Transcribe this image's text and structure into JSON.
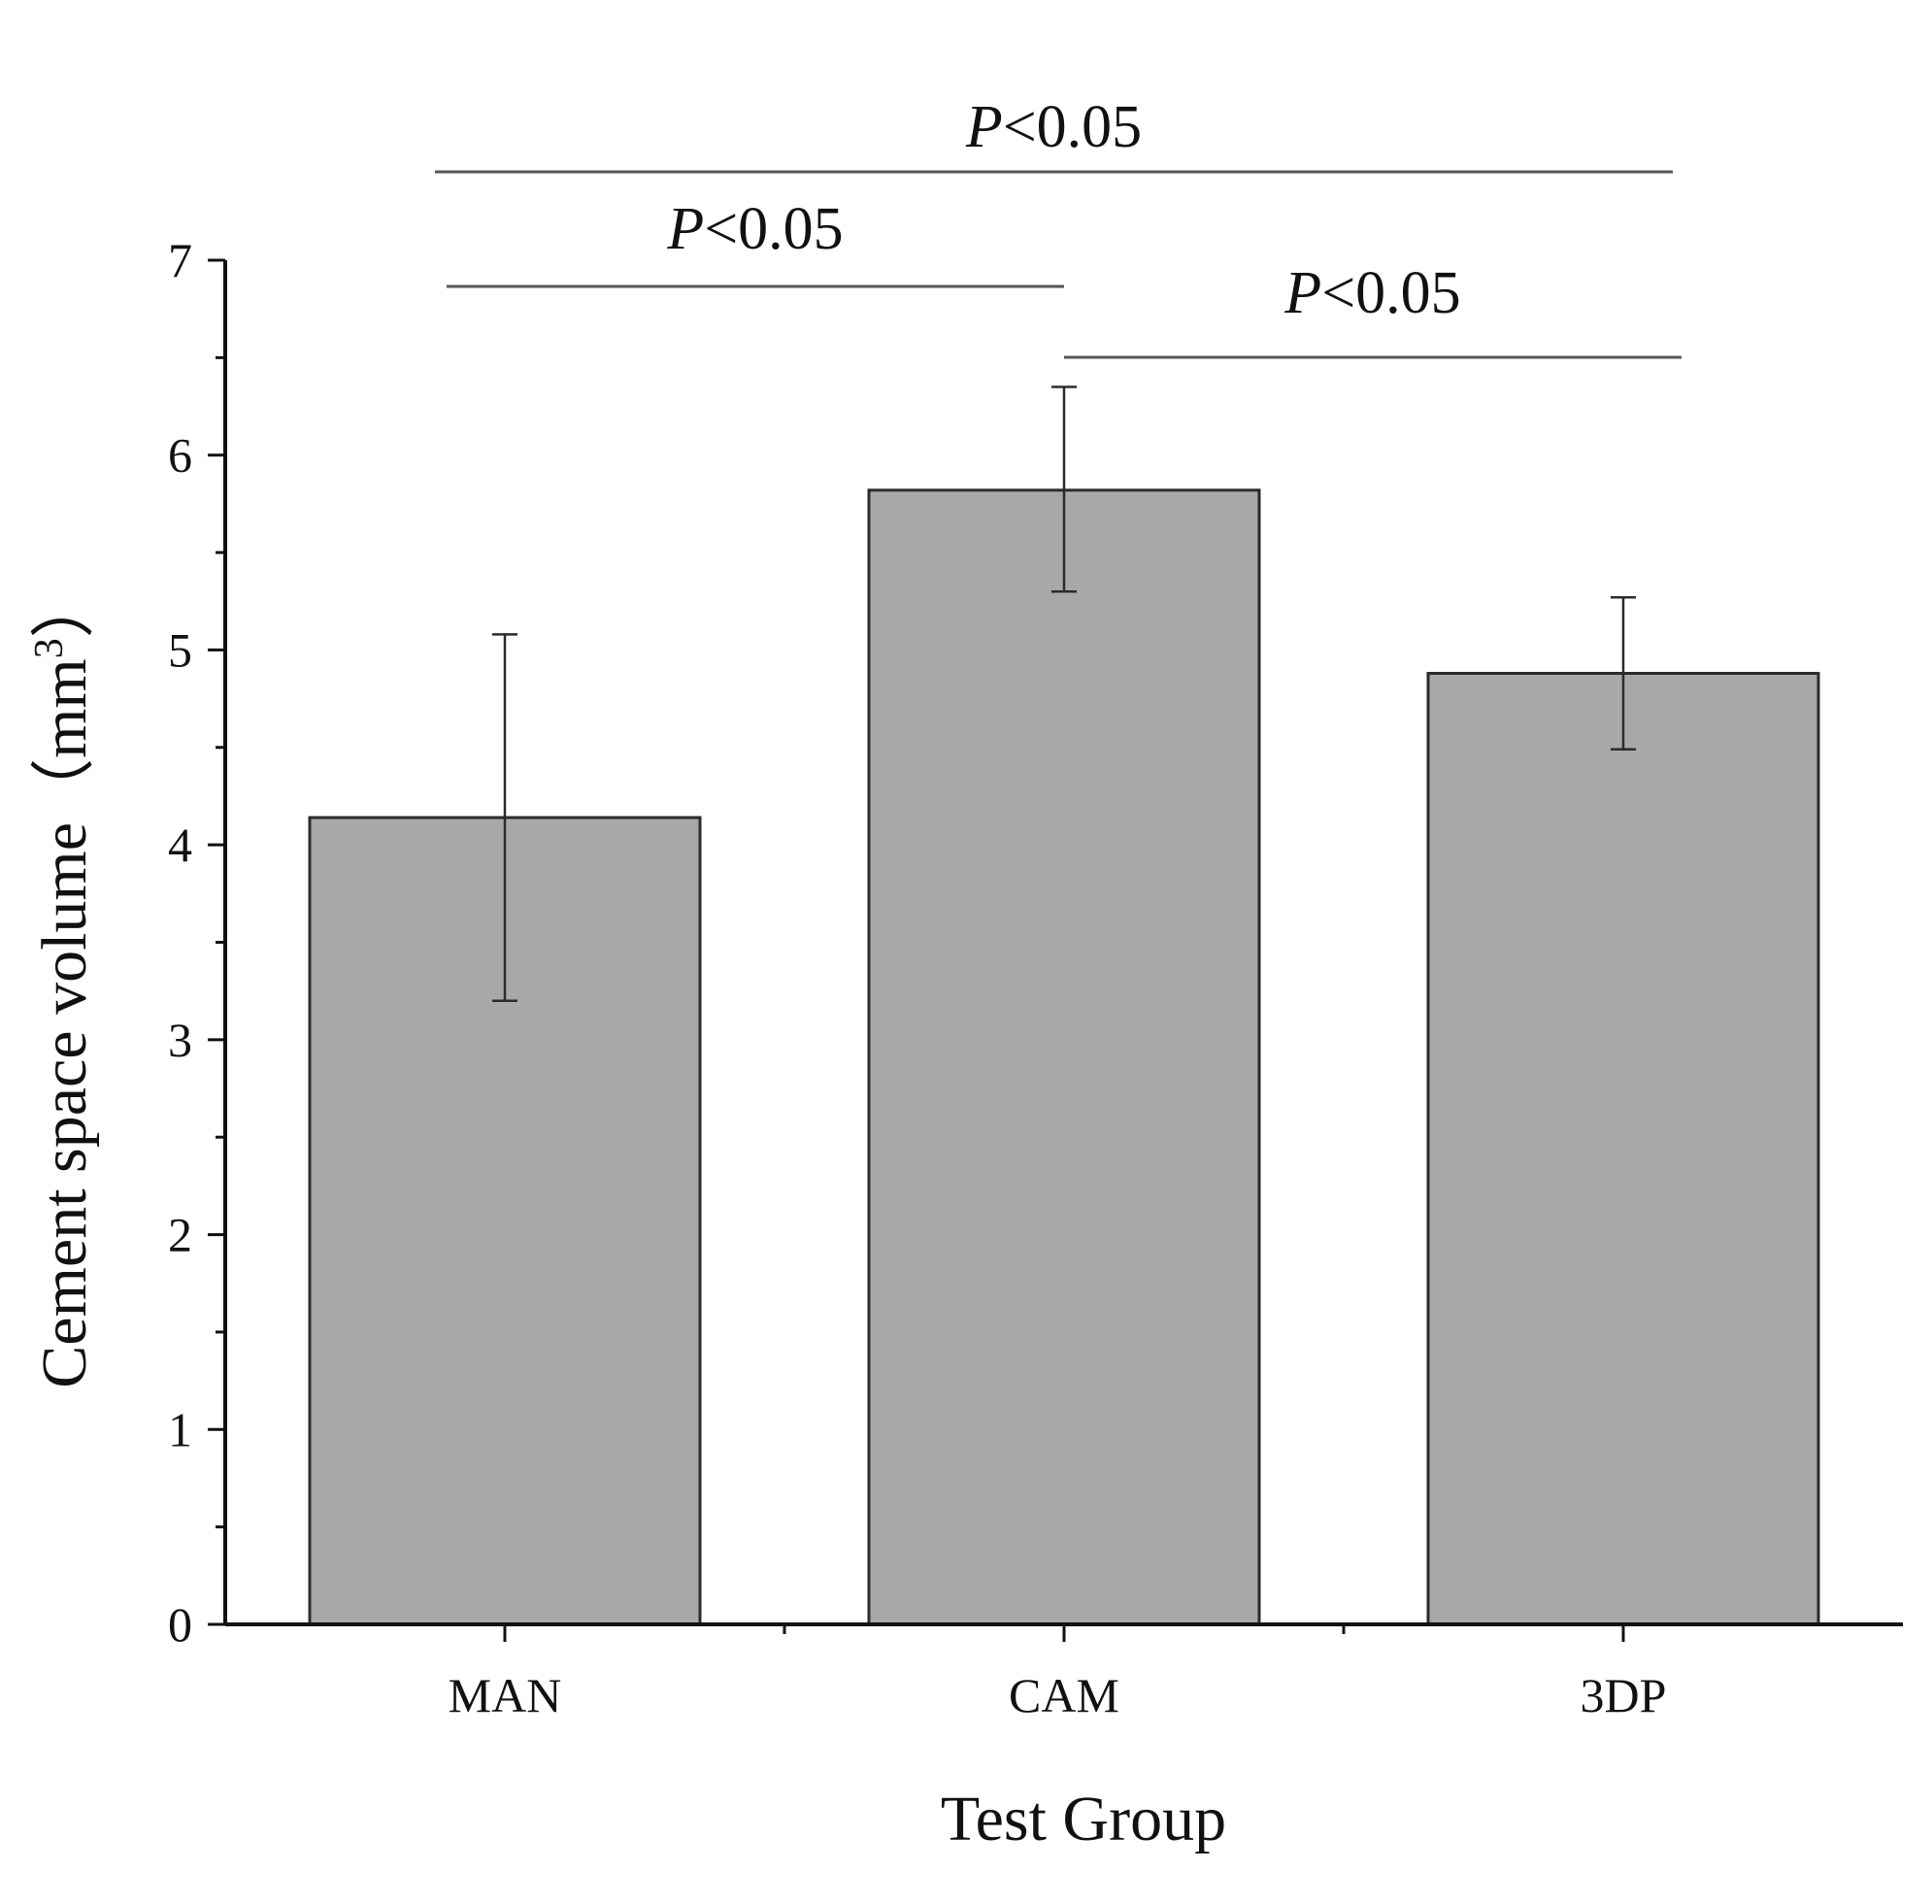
{
  "chart_data": {
    "type": "bar",
    "title": "",
    "xlabel": "Test Group",
    "ylabel": "Cement space volume（mm",
    "ylabel_superscript": "3",
    "ylabel_close": "）",
    "ylim": [
      0,
      7
    ],
    "yticks": [
      "0",
      "1",
      "2",
      "3",
      "4",
      "5",
      "6",
      "7"
    ],
    "categories": [
      "MAN",
      "CAM",
      "3DP"
    ],
    "values": [
      4.14,
      5.82,
      4.88
    ],
    "error_low": [
      3.2,
      5.3,
      4.49
    ],
    "error_high": [
      5.08,
      6.35,
      5.27
    ],
    "bar_color": "#a8a8a8",
    "grid": false,
    "significance": [
      {
        "from": "MAN",
        "to": "CAM",
        "label_italic": "P",
        "label_rest": "<0.05"
      },
      {
        "from": "CAM",
        "to": "3DP",
        "label_italic": "P",
        "label_rest": "<0.05"
      },
      {
        "from": "MAN",
        "to": "3DP",
        "label_italic": "P",
        "label_rest": "<0.05"
      }
    ]
  }
}
